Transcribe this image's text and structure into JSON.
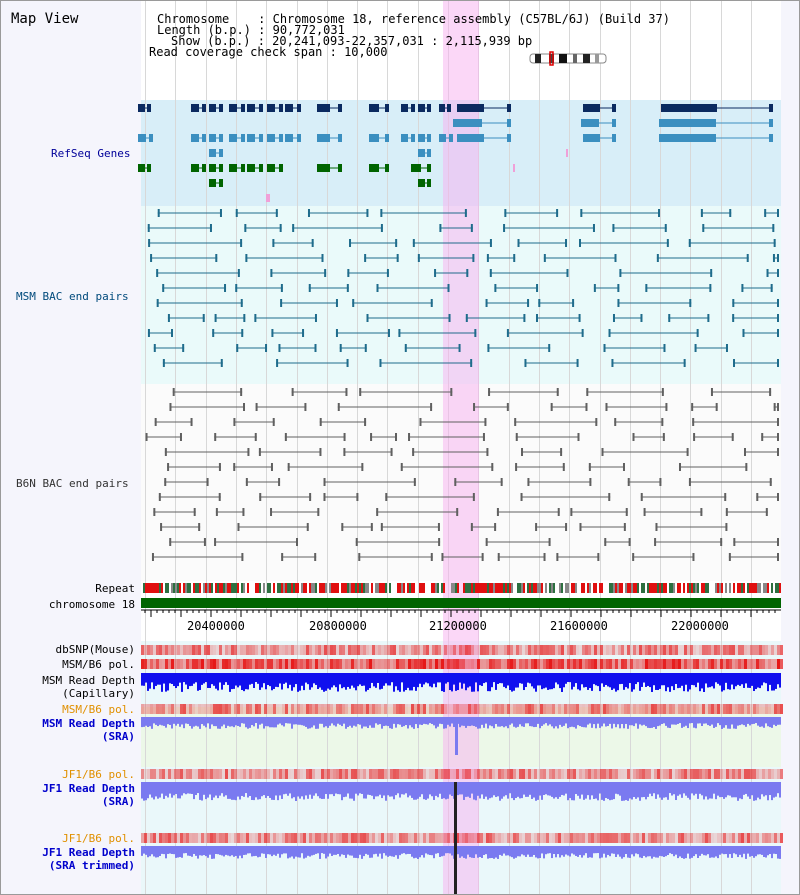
{
  "view_title": "Map View",
  "header": [
    {
      "key": "Chromosome",
      "value": "Chromosome 18, reference assembly (C57BL/6J) (Build 37)"
    },
    {
      "key": "Length (b.p.)",
      "value": "90,772,031"
    },
    {
      "key": "Show (b.p.)",
      "value": "20,241,093-22,357,031 : 2,115,939 bp"
    },
    {
      "key": "Read coverage check span",
      "value": "10,000"
    }
  ],
  "tracks": {
    "refseq": "RefSeq Genes",
    "msm_bac": "MSM BAC end pairs",
    "b6n_bac": "B6N BAC end pairs",
    "repeat": "Repeat",
    "chromosome": "chromosome 18",
    "dbsnp": "dbSNP(Mouse)",
    "msm_b6_pol_1": "MSM/B6 pol.",
    "msm_depth_cap_1": "MSM Read Depth",
    "msm_depth_cap_2": "(Capillary)",
    "msm_b6_pol_2": "MSM/B6 pol.",
    "msm_depth_sra_1": "MSM Read Depth",
    "msm_depth_sra_2": "(SRA)",
    "jf1_b6_pol_1": "JF1/B6 pol.",
    "jf1_depth_sra_1": "JF1 Read Depth",
    "jf1_depth_sra_2": "(SRA)",
    "jf1_b6_pol_2": "JF1/B6 pol.",
    "jf1_depth_trim_1": "JF1 Read Depth",
    "jf1_depth_trim_2": "(SRA trimmed)"
  },
  "axis": {
    "ticks": [
      "20400000",
      "20800000",
      "21200000",
      "21600000",
      "22000000"
    ]
  },
  "colors": {
    "refseq_dark": "#0b2a60",
    "refseq_mid": "#3b8fc0",
    "refseq_green": "#006400",
    "msm_bac": "#1f6c8c",
    "b6n_bac": "#606060",
    "chromosome": "#006400",
    "depth_capillary": "#1010ee",
    "depth_sra": "#7a7af0",
    "highlight": "#f8b0f0"
  }
}
